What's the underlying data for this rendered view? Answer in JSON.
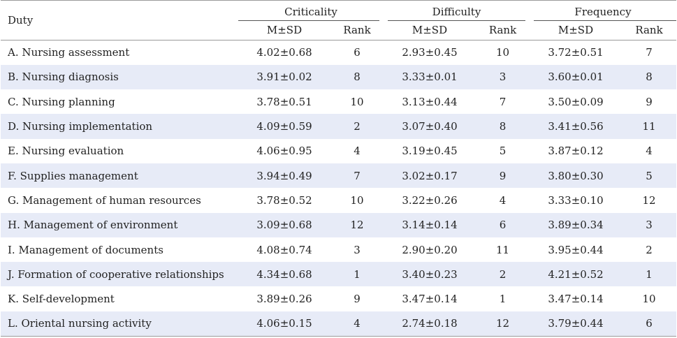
{
  "table": {
    "header": {
      "duty": "Duty",
      "groups": [
        "Criticality",
        "Difficulty",
        "Frequency"
      ],
      "sub": [
        "M±SD",
        "Rank"
      ]
    },
    "rows": [
      {
        "duty": "A. Nursing assessment",
        "c_msd": "4.02±0.68",
        "c_rank": "6",
        "d_msd": "2.93±0.45",
        "d_rank": "10",
        "f_msd": "3.72±0.51",
        "f_rank": "7"
      },
      {
        "duty": "B. Nursing diagnosis",
        "c_msd": "3.91±0.02",
        "c_rank": "8",
        "d_msd": "3.33±0.01",
        "d_rank": "3",
        "f_msd": "3.60±0.01",
        "f_rank": "8"
      },
      {
        "duty": "C. Nursing planning",
        "c_msd": "3.78±0.51",
        "c_rank": "10",
        "d_msd": "3.13±0.44",
        "d_rank": "7",
        "f_msd": "3.50±0.09",
        "f_rank": "9"
      },
      {
        "duty": "D. Nursing implementation",
        "c_msd": "4.09±0.59",
        "c_rank": "2",
        "d_msd": "3.07±0.40",
        "d_rank": "8",
        "f_msd": "3.41±0.56",
        "f_rank": "11"
      },
      {
        "duty": "E. Nursing evaluation",
        "c_msd": "4.06±0.95",
        "c_rank": "4",
        "d_msd": "3.19±0.45",
        "d_rank": "5",
        "f_msd": "3.87±0.12",
        "f_rank": "4"
      },
      {
        "duty": "F. Supplies management",
        "c_msd": "3.94±0.49",
        "c_rank": "7",
        "d_msd": "3.02±0.17",
        "d_rank": "9",
        "f_msd": "3.80±0.30",
        "f_rank": "5"
      },
      {
        "duty": "G. Management of human resources",
        "c_msd": "3.78±0.52",
        "c_rank": "10",
        "d_msd": "3.22±0.26",
        "d_rank": "4",
        "f_msd": "3.33±0.10",
        "f_rank": "12"
      },
      {
        "duty": "H. Management of environment",
        "c_msd": "3.09±0.68",
        "c_rank": "12",
        "d_msd": "3.14±0.14",
        "d_rank": "6",
        "f_msd": "3.89±0.34",
        "f_rank": "3"
      },
      {
        "duty": "I. Management of documents",
        "c_msd": "4.08±0.74",
        "c_rank": "3",
        "d_msd": "2.90±0.20",
        "d_rank": "11",
        "f_msd": "3.95±0.44",
        "f_rank": "2"
      },
      {
        "duty": "J. Formation of cooperative relationships",
        "c_msd": "4.34±0.68",
        "c_rank": "1",
        "d_msd": "3.40±0.23",
        "d_rank": "2",
        "f_msd": "4.21±0.52",
        "f_rank": "1"
      },
      {
        "duty": "K. Self-development",
        "c_msd": "3.89±0.26",
        "c_rank": "9",
        "d_msd": "3.47±0.14",
        "d_rank": "1",
        "f_msd": "3.47±0.14",
        "f_rank": "10"
      },
      {
        "duty": "L. Oriental nursing activity",
        "c_msd": "4.06±0.15",
        "c_rank": "4",
        "d_msd": "2.74±0.18",
        "d_rank": "12",
        "f_msd": "3.79±0.44",
        "f_rank": "6"
      }
    ]
  }
}
